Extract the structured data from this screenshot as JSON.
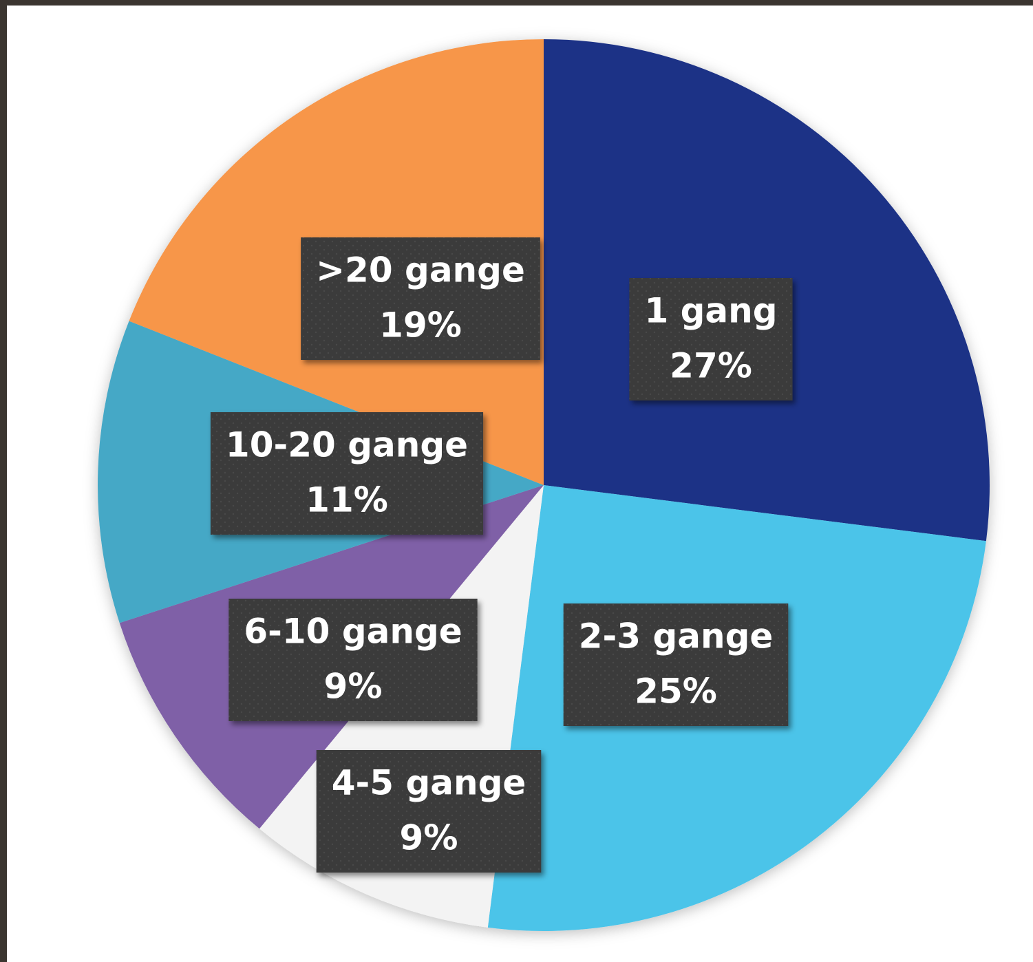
{
  "chart_data": {
    "type": "pie",
    "categories": [
      "1 gang",
      "2-3 gange",
      "4-5 gange",
      "6-10 gange",
      "10-20 gange",
      ">20 gange"
    ],
    "values": [
      27,
      25,
      9,
      9,
      11,
      19
    ],
    "value_labels": [
      "27%",
      "25%",
      "9%",
      "9%",
      "11%",
      "19%"
    ],
    "colors": [
      "#1d3386",
      "#4cc4e9",
      "#f3f3f3",
      "#7f61a7",
      "#45a8c6",
      "#f7964a"
    ]
  }
}
